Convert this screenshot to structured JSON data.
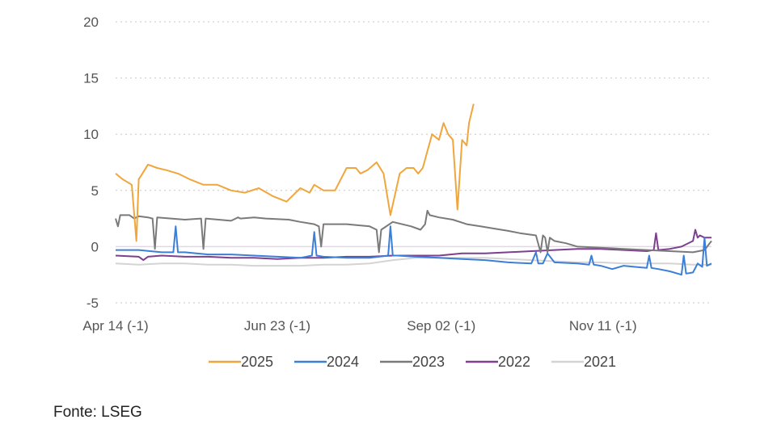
{
  "chart_data": {
    "type": "line",
    "title": "",
    "xlabel": "",
    "ylabel": "",
    "ylim": [
      -5,
      20
    ],
    "y_ticks": [
      -5,
      0,
      5,
      10,
      15,
      20
    ],
    "x_tick_labels": [
      "Apr 14 (-1)",
      "Jun 23 (-1)",
      "Sep 02 (-1)",
      "Nov 11 (-1)"
    ],
    "x_tick_index": [
      0,
      70,
      141,
      211
    ],
    "grid": "horizontal dotted",
    "legend_position": "bottom",
    "series": [
      {
        "name": "2025",
        "color": "#F0A63C",
        "x": [
          0,
          3,
          7,
          9,
          10,
          11,
          14,
          18,
          22,
          27,
          32,
          38,
          44,
          50,
          56,
          62,
          68,
          74,
          80,
          84,
          86,
          90,
          95,
          100,
          104,
          106,
          109,
          113,
          116,
          119,
          123,
          126,
          129,
          131,
          133,
          137,
          140,
          142,
          144,
          146,
          148,
          150,
          152,
          153,
          155
        ],
        "values": [
          6.5,
          6.0,
          5.5,
          0.5,
          6.0,
          6.3,
          7.3,
          7.0,
          6.8,
          6.5,
          6.0,
          5.5,
          5.5,
          5.0,
          4.8,
          5.2,
          4.5,
          4.0,
          5.2,
          4.8,
          5.5,
          5.0,
          5.0,
          7.0,
          7.0,
          6.5,
          6.8,
          7.5,
          6.5,
          2.8,
          6.5,
          7.0,
          7.0,
          6.5,
          7.0,
          10.0,
          9.5,
          11.0,
          10.0,
          9.5,
          3.3,
          9.5,
          9.0,
          11.0,
          12.7
        ]
      },
      {
        "name": "2024",
        "color": "#3C7FD6",
        "x": [
          0,
          10,
          20,
          25,
          26,
          27,
          30,
          35,
          40,
          50,
          60,
          70,
          80,
          85,
          86,
          87,
          90,
          100,
          110,
          118,
          119,
          120,
          122,
          130,
          140,
          150,
          160,
          170,
          180,
          182,
          183,
          185,
          187,
          190,
          200,
          205,
          206,
          207,
          210,
          215,
          220,
          225,
          230,
          231,
          232,
          235,
          240,
          245,
          246,
          247,
          250,
          252,
          254,
          255,
          256,
          258
        ],
        "values": [
          -0.3,
          -0.3,
          -0.5,
          -0.5,
          1.8,
          -0.5,
          -0.5,
          -0.6,
          -0.7,
          -0.7,
          -0.8,
          -0.9,
          -1.0,
          -0.8,
          1.3,
          -0.8,
          -0.9,
          -1.0,
          -1.0,
          -0.8,
          1.8,
          -0.8,
          -0.8,
          -0.9,
          -1.0,
          -1.1,
          -1.2,
          -1.4,
          -1.5,
          -0.5,
          -1.5,
          -1.5,
          -0.6,
          -1.4,
          -1.5,
          -1.6,
          -0.8,
          -1.6,
          -1.7,
          -2.0,
          -1.7,
          -1.8,
          -1.9,
          -0.8,
          -1.9,
          -2.0,
          -2.2,
          -2.5,
          -0.8,
          -2.4,
          -2.3,
          -1.5,
          -1.8,
          0.8,
          -1.7,
          -1.5
        ]
      },
      {
        "name": "2023",
        "color": "#7A7A7A",
        "x": [
          0,
          1,
          2,
          6,
          8,
          9,
          10,
          14,
          16,
          17,
          18,
          24,
          30,
          37,
          38,
          39,
          50,
          52,
          53,
          54,
          60,
          65,
          75,
          80,
          86,
          88,
          89,
          90,
          100,
          110,
          113,
          114,
          115,
          120,
          128,
          132,
          134,
          135,
          136,
          140,
          146,
          152,
          158,
          164,
          170,
          175,
          182,
          184,
          185,
          186,
          187,
          188,
          190,
          195,
          200,
          210,
          220,
          230,
          240,
          250,
          255,
          258
        ],
        "values": [
          2.5,
          1.8,
          2.8,
          2.8,
          2.5,
          2.6,
          2.7,
          2.6,
          2.5,
          -0.2,
          2.6,
          2.5,
          2.4,
          2.5,
          -0.2,
          2.5,
          2.3,
          2.5,
          2.6,
          2.5,
          2.6,
          2.5,
          2.4,
          2.2,
          2.0,
          1.8,
          0.0,
          2.0,
          2.0,
          1.8,
          1.5,
          -0.5,
          1.5,
          2.2,
          1.8,
          1.5,
          2.0,
          3.2,
          2.8,
          2.6,
          2.4,
          2.0,
          1.8,
          1.6,
          1.4,
          1.2,
          1.0,
          -0.5,
          1.0,
          0.8,
          -0.5,
          0.8,
          0.5,
          0.3,
          0.0,
          -0.1,
          -0.2,
          -0.3,
          -0.4,
          -0.5,
          -0.3,
          0.5
        ]
      },
      {
        "name": "2022",
        "color": "#7D3F8E",
        "x": [
          0,
          10,
          12,
          14,
          20,
          30,
          40,
          50,
          60,
          70,
          80,
          90,
          100,
          110,
          120,
          130,
          140,
          150,
          160,
          170,
          180,
          190,
          200,
          210,
          220,
          230,
          233,
          234,
          235,
          240,
          245,
          250,
          251,
          252,
          253,
          255,
          258
        ],
        "values": [
          -0.8,
          -0.9,
          -1.2,
          -0.9,
          -0.8,
          -0.9,
          -0.9,
          -1.0,
          -1.0,
          -1.1,
          -1.0,
          -1.0,
          -0.9,
          -0.9,
          -0.8,
          -0.8,
          -0.8,
          -0.6,
          -0.6,
          -0.5,
          -0.4,
          -0.3,
          -0.2,
          -0.2,
          -0.3,
          -0.4,
          -0.3,
          1.2,
          -0.3,
          -0.2,
          0.0,
          0.5,
          1.5,
          0.8,
          1.0,
          0.8,
          0.8
        ]
      },
      {
        "name": "2021",
        "color": "#D4D4D4",
        "x": [
          0,
          10,
          20,
          30,
          40,
          50,
          60,
          70,
          80,
          90,
          100,
          110,
          120,
          130,
          140,
          150,
          160,
          170,
          180,
          190,
          200,
          210,
          220,
          230,
          240,
          250,
          258
        ],
        "values": [
          -1.5,
          -1.6,
          -1.5,
          -1.5,
          -1.6,
          -1.6,
          -1.7,
          -1.7,
          -1.7,
          -1.6,
          -1.6,
          -1.5,
          -1.2,
          -1.0,
          -1.0,
          -1.0,
          -1.0,
          -1.1,
          -1.2,
          -1.3,
          -1.4,
          -1.4,
          -1.5,
          -1.5,
          -1.5,
          -1.6,
          -1.6
        ]
      }
    ]
  },
  "source_text": "Fonte: LSEG"
}
